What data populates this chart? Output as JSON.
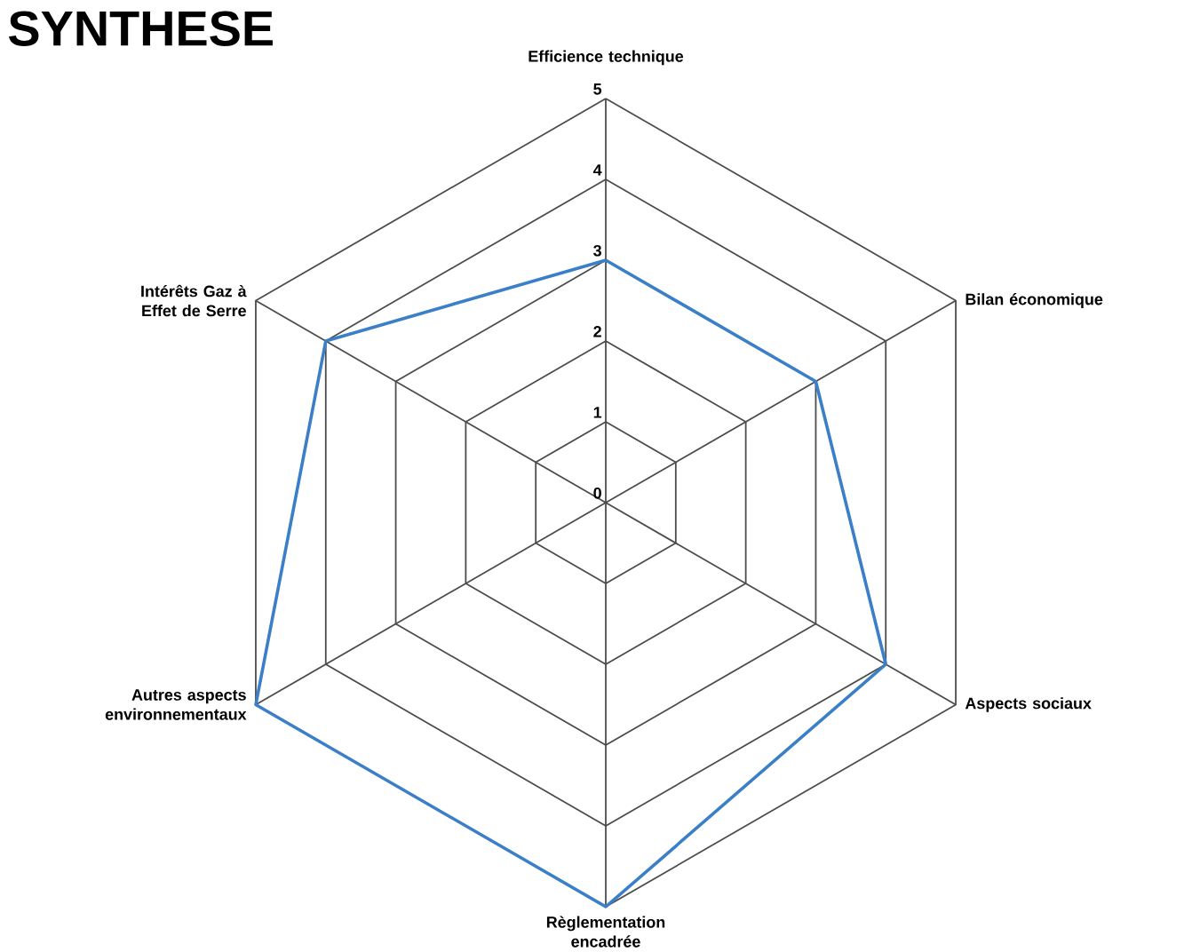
{
  "chart_data": {
    "type": "radar",
    "title": "SYNTHESE",
    "categories": [
      "Efficience technique",
      "Bilan économique",
      "Aspects sociaux",
      "Règlementation encadrée",
      "Autres aspects environnementaux",
      "Intérêts Gaz à Effet de Serre"
    ],
    "series": [
      {
        "color": "#3b7fc8",
        "values": [
          3,
          3,
          4,
          5,
          5,
          4
        ]
      }
    ],
    "ylim": [
      0,
      5
    ],
    "yticks": [
      0,
      1,
      2,
      3,
      4,
      5
    ],
    "grid": true
  }
}
